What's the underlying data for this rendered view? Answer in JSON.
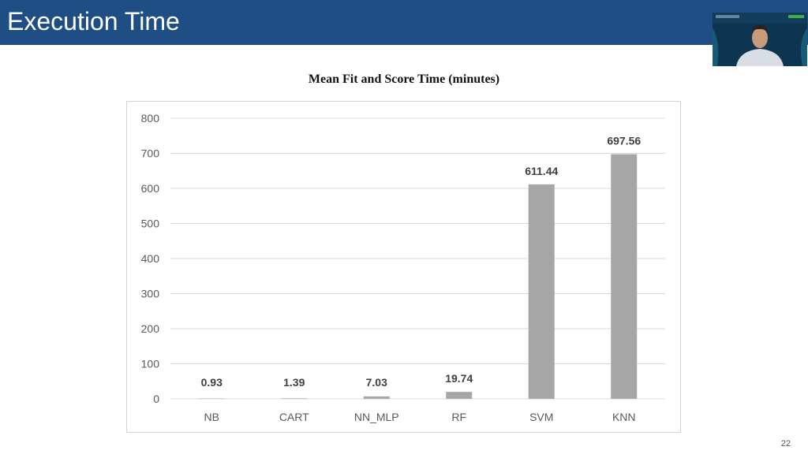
{
  "slide": {
    "title": "Execution Time",
    "page_number": "22"
  },
  "colors": {
    "title_bar": "#1f4e85",
    "bar": "#a6a6a6",
    "grid": "#d9d9d9"
  },
  "video_feed": {
    "icon": "presenter-webcam"
  },
  "chart_data": {
    "type": "bar",
    "title": "Mean Fit and Score Time (minutes)",
    "categories": [
      "NB",
      "CART",
      "NN_MLP",
      "RF",
      "SVM",
      "KNN"
    ],
    "values": [
      0.93,
      1.39,
      7.03,
      19.74,
      611.44,
      697.56
    ],
    "data_labels": [
      "0.93",
      "1.39",
      "7.03",
      "19.74",
      "611.44",
      "697.56"
    ],
    "yticks": [
      0,
      100,
      200,
      300,
      400,
      500,
      600,
      700,
      800
    ],
    "ylim": [
      0,
      800
    ],
    "grid": true,
    "legend": "none"
  }
}
